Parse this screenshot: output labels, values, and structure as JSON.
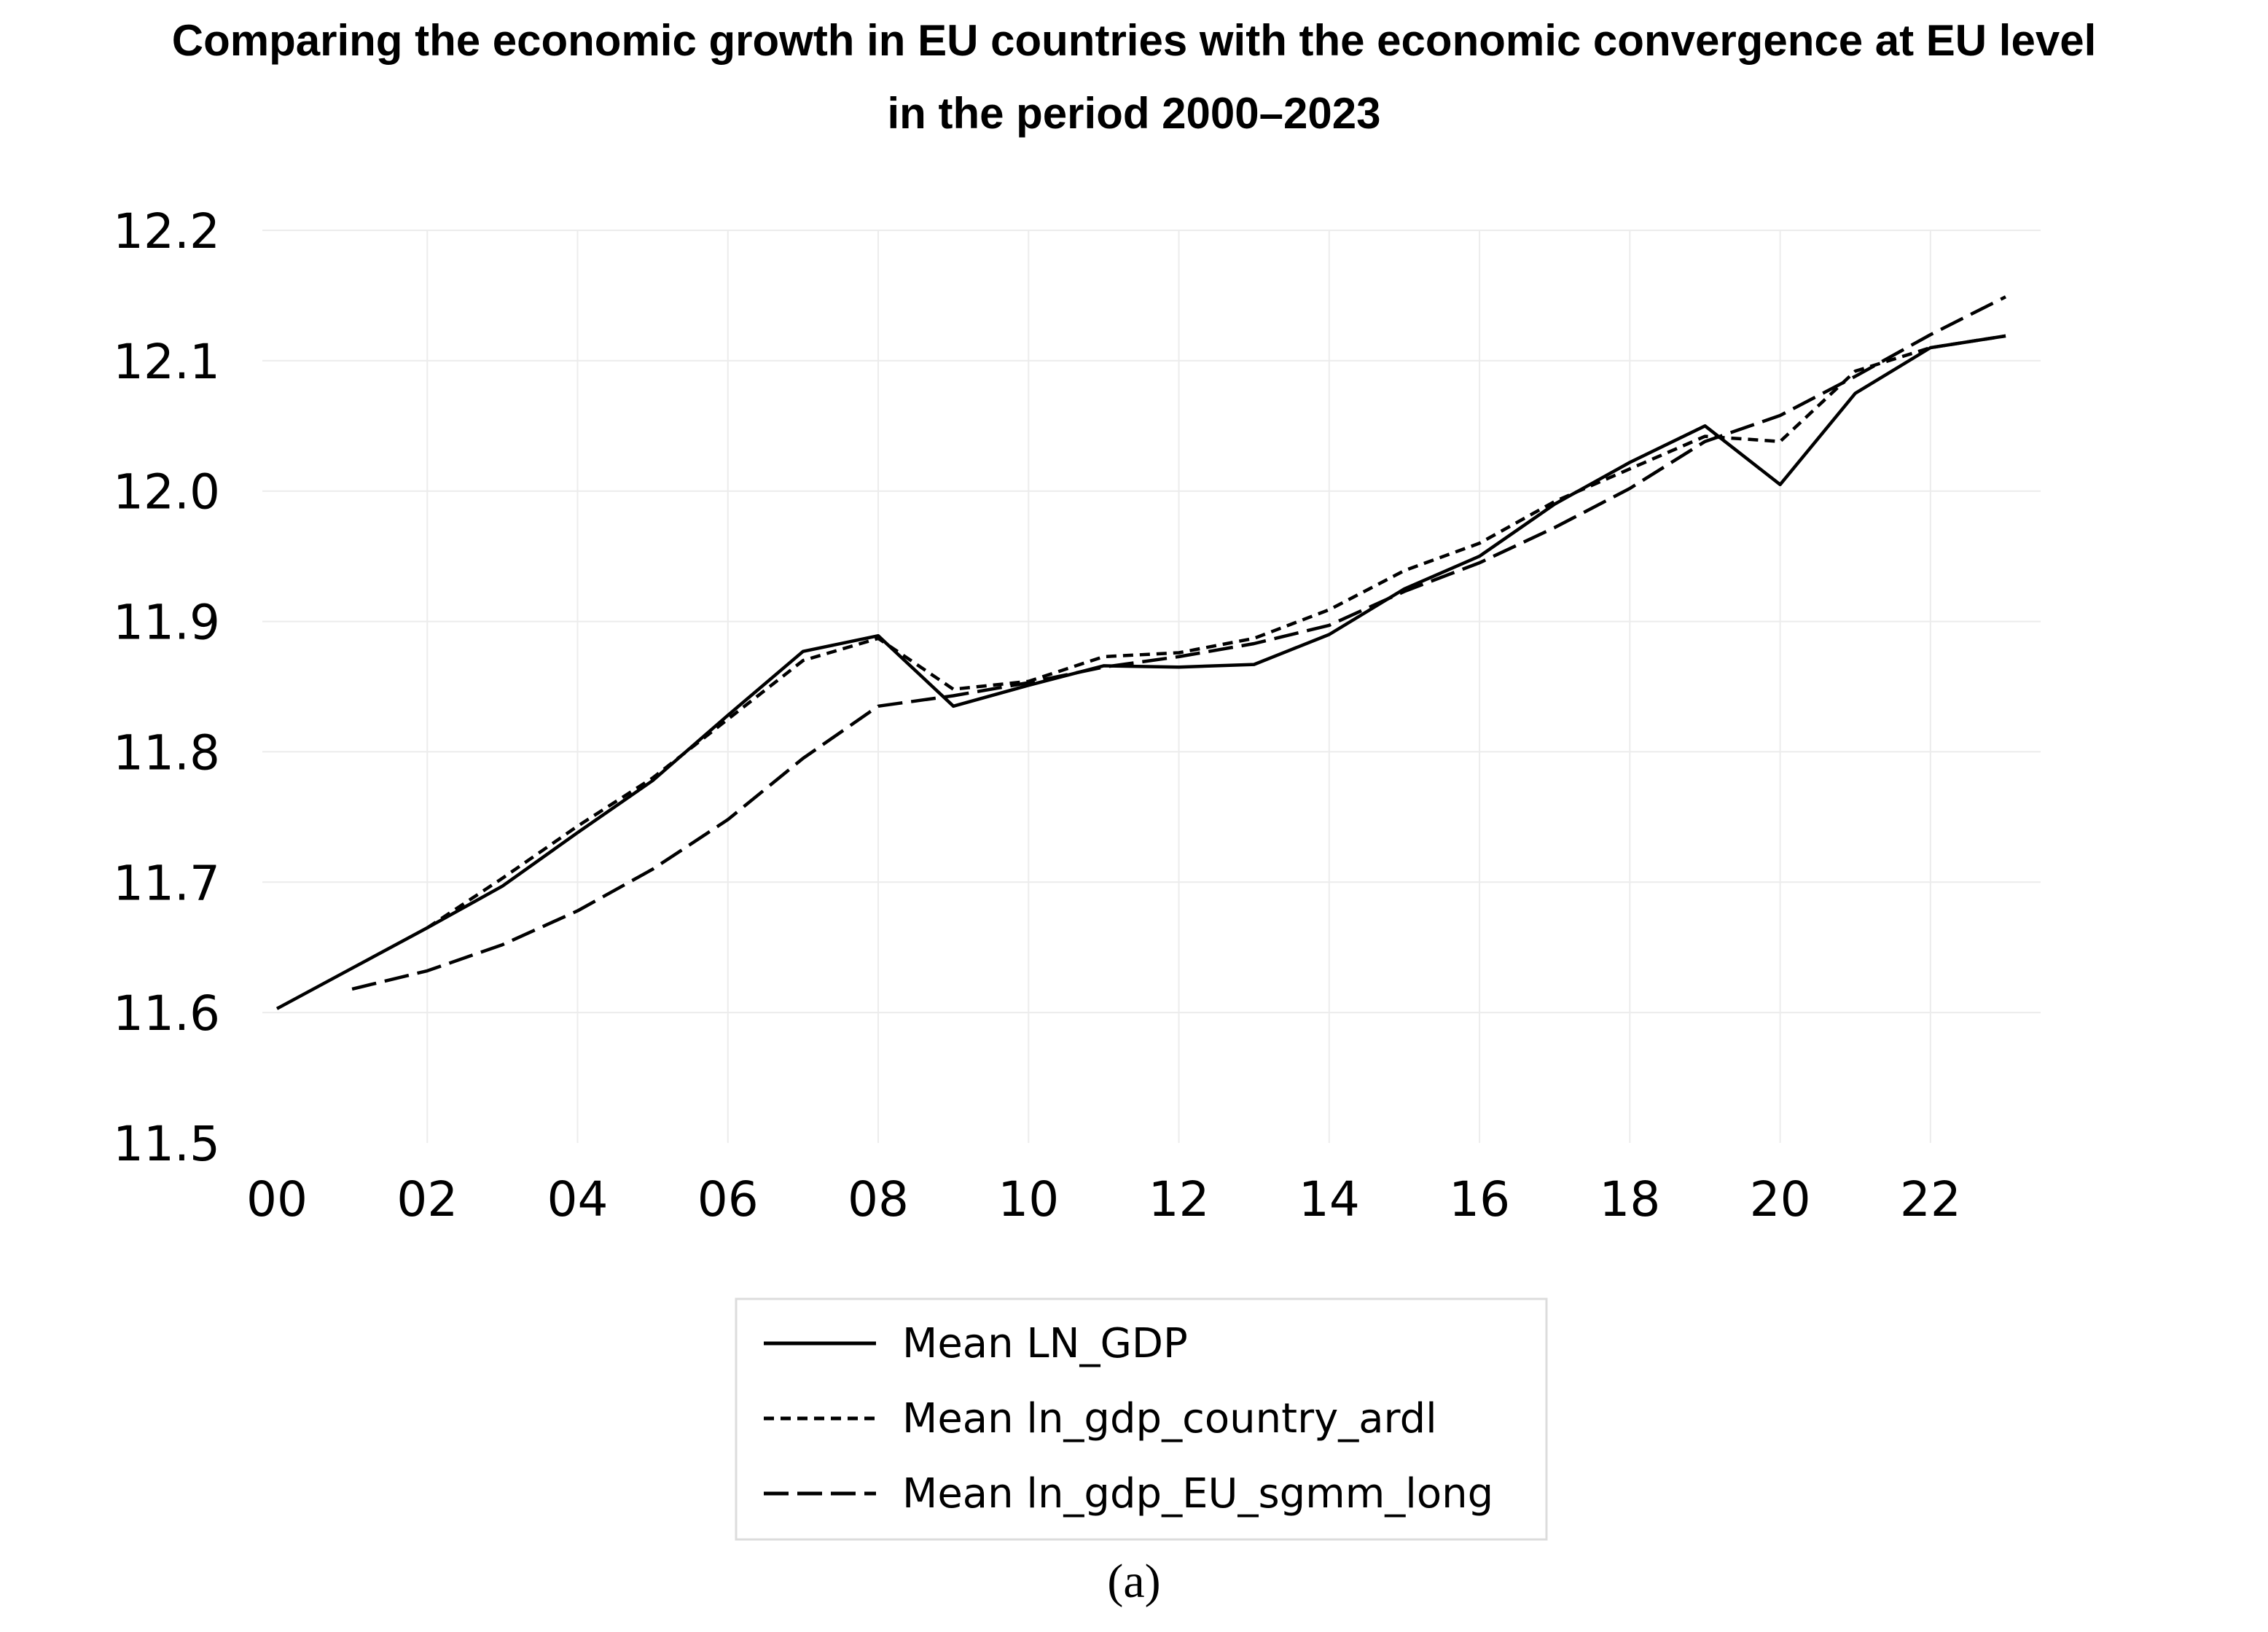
{
  "chart_data": {
    "type": "line",
    "title_lines": [
      "Comparing the economic growth in EU countries with the economic convergence at EU level",
      "in the period 2000–2023"
    ],
    "xlabel": "",
    "ylabel": "",
    "ylim": [
      11.5,
      12.2
    ],
    "y_ticks": [
      "11.5",
      "11.6",
      "11.7",
      "11.8",
      "11.9",
      "12.0",
      "12.1",
      "12.2"
    ],
    "x_range": [
      2000,
      2023
    ],
    "x_ticks": [
      {
        "year": 2000,
        "label": "00"
      },
      {
        "year": 2002,
        "label": "02"
      },
      {
        "year": 2004,
        "label": "04"
      },
      {
        "year": 2006,
        "label": "06"
      },
      {
        "year": 2008,
        "label": "08"
      },
      {
        "year": 2010,
        "label": "10"
      },
      {
        "year": 2012,
        "label": "12"
      },
      {
        "year": 2014,
        "label": "14"
      },
      {
        "year": 2016,
        "label": "16"
      },
      {
        "year": 2018,
        "label": "18"
      },
      {
        "year": 2020,
        "label": "20"
      },
      {
        "year": 2022,
        "label": "22"
      }
    ],
    "grid": true,
    "legend_position": "bottom-center",
    "series": [
      {
        "name": "Mean LN_GDP",
        "style": "solid",
        "x": [
          2000,
          2001,
          2002,
          2003,
          2004,
          2005,
          2006,
          2007,
          2008,
          2009,
          2010,
          2011,
          2012,
          2013,
          2014,
          2015,
          2016,
          2017,
          2018,
          2019,
          2020,
          2021,
          2022,
          2023
        ],
        "values": [
          11.603,
          11.634,
          11.665,
          11.697,
          11.738,
          11.778,
          11.828,
          11.877,
          11.889,
          11.835,
          11.851,
          11.866,
          11.865,
          11.867,
          11.89,
          11.925,
          11.95,
          11.99,
          12.022,
          12.05,
          12.005,
          12.075,
          12.11,
          12.119
        ]
      },
      {
        "name": "Mean ln_gdp_country_ardl",
        "style": "short-dash",
        "x": [
          2002,
          2003,
          2004,
          2005,
          2006,
          2007,
          2008,
          2009,
          2010,
          2011,
          2012,
          2013,
          2014,
          2015,
          2016,
          2017,
          2018,
          2019,
          2020,
          2021,
          2022,
          2023
        ],
        "values": [
          11.665,
          11.703,
          11.743,
          11.78,
          11.825,
          11.87,
          11.887,
          11.848,
          11.854,
          11.873,
          11.876,
          11.887,
          11.909,
          11.939,
          11.96,
          11.992,
          12.017,
          12.042,
          12.038,
          12.092,
          12.11,
          12.119
        ]
      },
      {
        "name": "Mean ln_gdp_EU_sgmm_long",
        "style": "long-dash",
        "x": [
          2001,
          2002,
          2003,
          2004,
          2005,
          2006,
          2007,
          2008,
          2009,
          2010,
          2011,
          2012,
          2013,
          2014,
          2015,
          2016,
          2017,
          2018,
          2019,
          2020,
          2021,
          2022,
          2023
        ],
        "values": [
          11.618,
          11.632,
          11.652,
          11.678,
          11.71,
          11.748,
          11.795,
          11.835,
          11.843,
          11.853,
          11.865,
          11.873,
          11.883,
          11.897,
          11.923,
          11.945,
          11.972,
          12.002,
          12.038,
          12.058,
          12.088,
          12.12,
          12.149
        ]
      }
    ],
    "caption": "(a)"
  }
}
